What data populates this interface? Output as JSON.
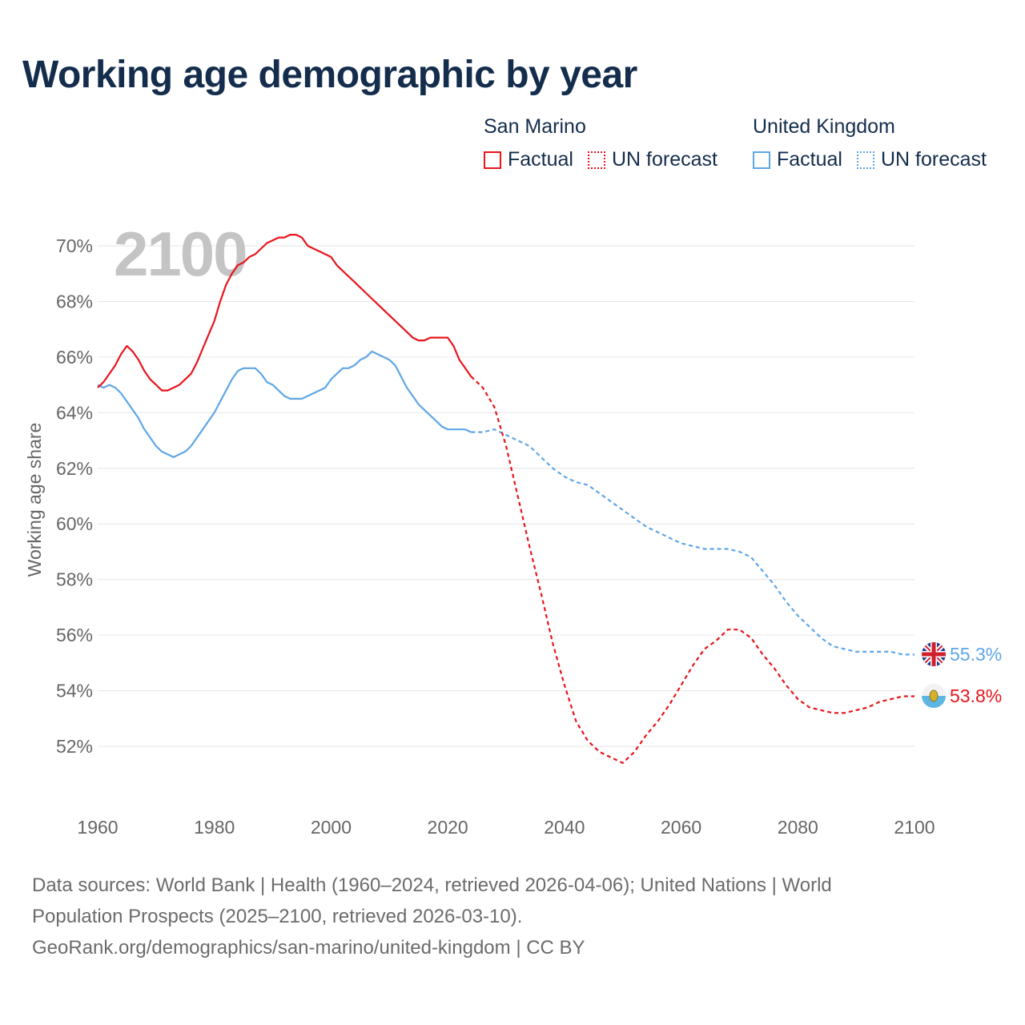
{
  "title": "Working age demographic by year",
  "legend": {
    "san_marino": {
      "name": "San Marino",
      "factual": "Factual",
      "forecast": "UN forecast",
      "color": "#e8141c"
    },
    "united_kingdom": {
      "name": "United Kingdom",
      "factual": "Factual",
      "forecast": "UN forecast",
      "color": "#5ea6e6"
    }
  },
  "sources": {
    "line1": "Data sources: World Bank | Health (1960–2024, retrieved 2026-04-06); United Nations | World",
    "line2": "Population Prospects (2025–2100, retrieved 2026-03-10).",
    "line3": "GeoRank.org/demographics/san-marino/united-kingdom | CC BY"
  },
  "chart_data": {
    "type": "line",
    "title": "Working age demographic by year",
    "year_watermark": "2100",
    "xlabel": "",
    "ylabel": "Working age share",
    "xlim": [
      1960,
      2100
    ],
    "ylim": [
      50,
      71.5
    ],
    "x_ticks": [
      1960,
      1980,
      2000,
      2020,
      2040,
      2060,
      2080,
      2100
    ],
    "y_ticks": [
      52,
      54,
      56,
      58,
      60,
      62,
      64,
      66,
      68,
      70
    ],
    "y_tick_suffix": "%",
    "grid": true,
    "series": [
      {
        "name": "San Marino",
        "color": "#e8141c",
        "end_label": "53.8%",
        "flag": "san-marino-flag-icon",
        "factual": {
          "x": [
            1960,
            1961,
            1962,
            1963,
            1964,
            1965,
            1966,
            1967,
            1968,
            1969,
            1970,
            1971,
            1972,
            1973,
            1974,
            1975,
            1976,
            1977,
            1978,
            1979,
            1980,
            1981,
            1982,
            1983,
            1984,
            1985,
            1986,
            1987,
            1988,
            1989,
            1990,
            1991,
            1992,
            1993,
            1994,
            1995,
            1996,
            1997,
            1998,
            1999,
            2000,
            2001,
            2002,
            2003,
            2004,
            2005,
            2006,
            2007,
            2008,
            2009,
            2010,
            2011,
            2012,
            2013,
            2014,
            2015,
            2016,
            2017,
            2018,
            2019,
            2020,
            2021,
            2022,
            2023,
            2024
          ],
          "y": [
            64.9,
            65.1,
            65.4,
            65.7,
            66.1,
            66.4,
            66.2,
            65.9,
            65.5,
            65.2,
            65.0,
            64.8,
            64.8,
            64.9,
            65.0,
            65.2,
            65.4,
            65.8,
            66.3,
            66.8,
            67.3,
            68.0,
            68.6,
            69.0,
            69.3,
            69.4,
            69.6,
            69.7,
            69.9,
            70.1,
            70.2,
            70.3,
            70.3,
            70.4,
            70.4,
            70.3,
            70.0,
            69.9,
            69.8,
            69.7,
            69.6,
            69.3,
            69.1,
            68.9,
            68.7,
            68.5,
            68.3,
            68.1,
            67.9,
            67.7,
            67.5,
            67.3,
            67.1,
            66.9,
            66.7,
            66.6,
            66.6,
            66.7,
            66.7,
            66.7,
            66.7,
            66.4,
            65.9,
            65.6,
            65.3
          ]
        },
        "forecast": {
          "x": [
            2024,
            2026,
            2028,
            2030,
            2032,
            2034,
            2036,
            2038,
            2040,
            2042,
            2044,
            2046,
            2048,
            2050,
            2052,
            2054,
            2056,
            2058,
            2060,
            2062,
            2064,
            2066,
            2068,
            2070,
            2072,
            2074,
            2076,
            2078,
            2080,
            2082,
            2084,
            2086,
            2088,
            2090,
            2092,
            2094,
            2096,
            2098,
            2100
          ],
          "y": [
            65.3,
            64.9,
            64.2,
            62.8,
            61.0,
            59.2,
            57.5,
            55.7,
            54.2,
            52.9,
            52.2,
            51.8,
            51.6,
            51.4,
            51.8,
            52.4,
            52.9,
            53.5,
            54.2,
            54.9,
            55.5,
            55.8,
            56.2,
            56.2,
            55.9,
            55.3,
            54.8,
            54.2,
            53.7,
            53.4,
            53.3,
            53.2,
            53.2,
            53.3,
            53.4,
            53.6,
            53.7,
            53.8,
            53.8
          ]
        }
      },
      {
        "name": "United Kingdom",
        "color": "#5ea6e6",
        "end_label": "55.3%",
        "flag": "united-kingdom-flag-icon",
        "factual": {
          "x": [
            1960,
            1961,
            1962,
            1963,
            1964,
            1965,
            1966,
            1967,
            1968,
            1969,
            1970,
            1971,
            1972,
            1973,
            1974,
            1975,
            1976,
            1977,
            1978,
            1979,
            1980,
            1981,
            1982,
            1983,
            1984,
            1985,
            1986,
            1987,
            1988,
            1989,
            1990,
            1991,
            1992,
            1993,
            1994,
            1995,
            1996,
            1997,
            1998,
            1999,
            2000,
            2001,
            2002,
            2003,
            2004,
            2005,
            2006,
            2007,
            2008,
            2009,
            2010,
            2011,
            2012,
            2013,
            2014,
            2015,
            2016,
            2017,
            2018,
            2019,
            2020,
            2021,
            2022,
            2023,
            2024
          ],
          "y": [
            65.0,
            64.9,
            65.0,
            64.9,
            64.7,
            64.4,
            64.1,
            63.8,
            63.4,
            63.1,
            62.8,
            62.6,
            62.5,
            62.4,
            62.5,
            62.6,
            62.8,
            63.1,
            63.4,
            63.7,
            64.0,
            64.4,
            64.8,
            65.2,
            65.5,
            65.6,
            65.6,
            65.6,
            65.4,
            65.1,
            65.0,
            64.8,
            64.6,
            64.5,
            64.5,
            64.5,
            64.6,
            64.7,
            64.8,
            64.9,
            65.2,
            65.4,
            65.6,
            65.6,
            65.7,
            65.9,
            66.0,
            66.2,
            66.1,
            66.0,
            65.9,
            65.7,
            65.3,
            64.9,
            64.6,
            64.3,
            64.1,
            63.9,
            63.7,
            63.5,
            63.4,
            63.4,
            63.4,
            63.4,
            63.3
          ]
        },
        "forecast": {
          "x": [
            2024,
            2026,
            2028,
            2030,
            2032,
            2034,
            2036,
            2038,
            2040,
            2042,
            2044,
            2046,
            2048,
            2050,
            2052,
            2054,
            2056,
            2058,
            2060,
            2062,
            2064,
            2066,
            2068,
            2070,
            2072,
            2074,
            2076,
            2078,
            2080,
            2082,
            2084,
            2086,
            2088,
            2090,
            2092,
            2094,
            2096,
            2098,
            2100
          ],
          "y": [
            63.3,
            63.3,
            63.4,
            63.2,
            63.0,
            62.8,
            62.4,
            62.0,
            61.7,
            61.5,
            61.4,
            61.1,
            60.8,
            60.5,
            60.2,
            59.9,
            59.7,
            59.5,
            59.3,
            59.2,
            59.1,
            59.1,
            59.1,
            59.0,
            58.8,
            58.3,
            57.8,
            57.2,
            56.7,
            56.3,
            55.9,
            55.6,
            55.5,
            55.4,
            55.4,
            55.4,
            55.4,
            55.3,
            55.3
          ]
        }
      }
    ]
  }
}
